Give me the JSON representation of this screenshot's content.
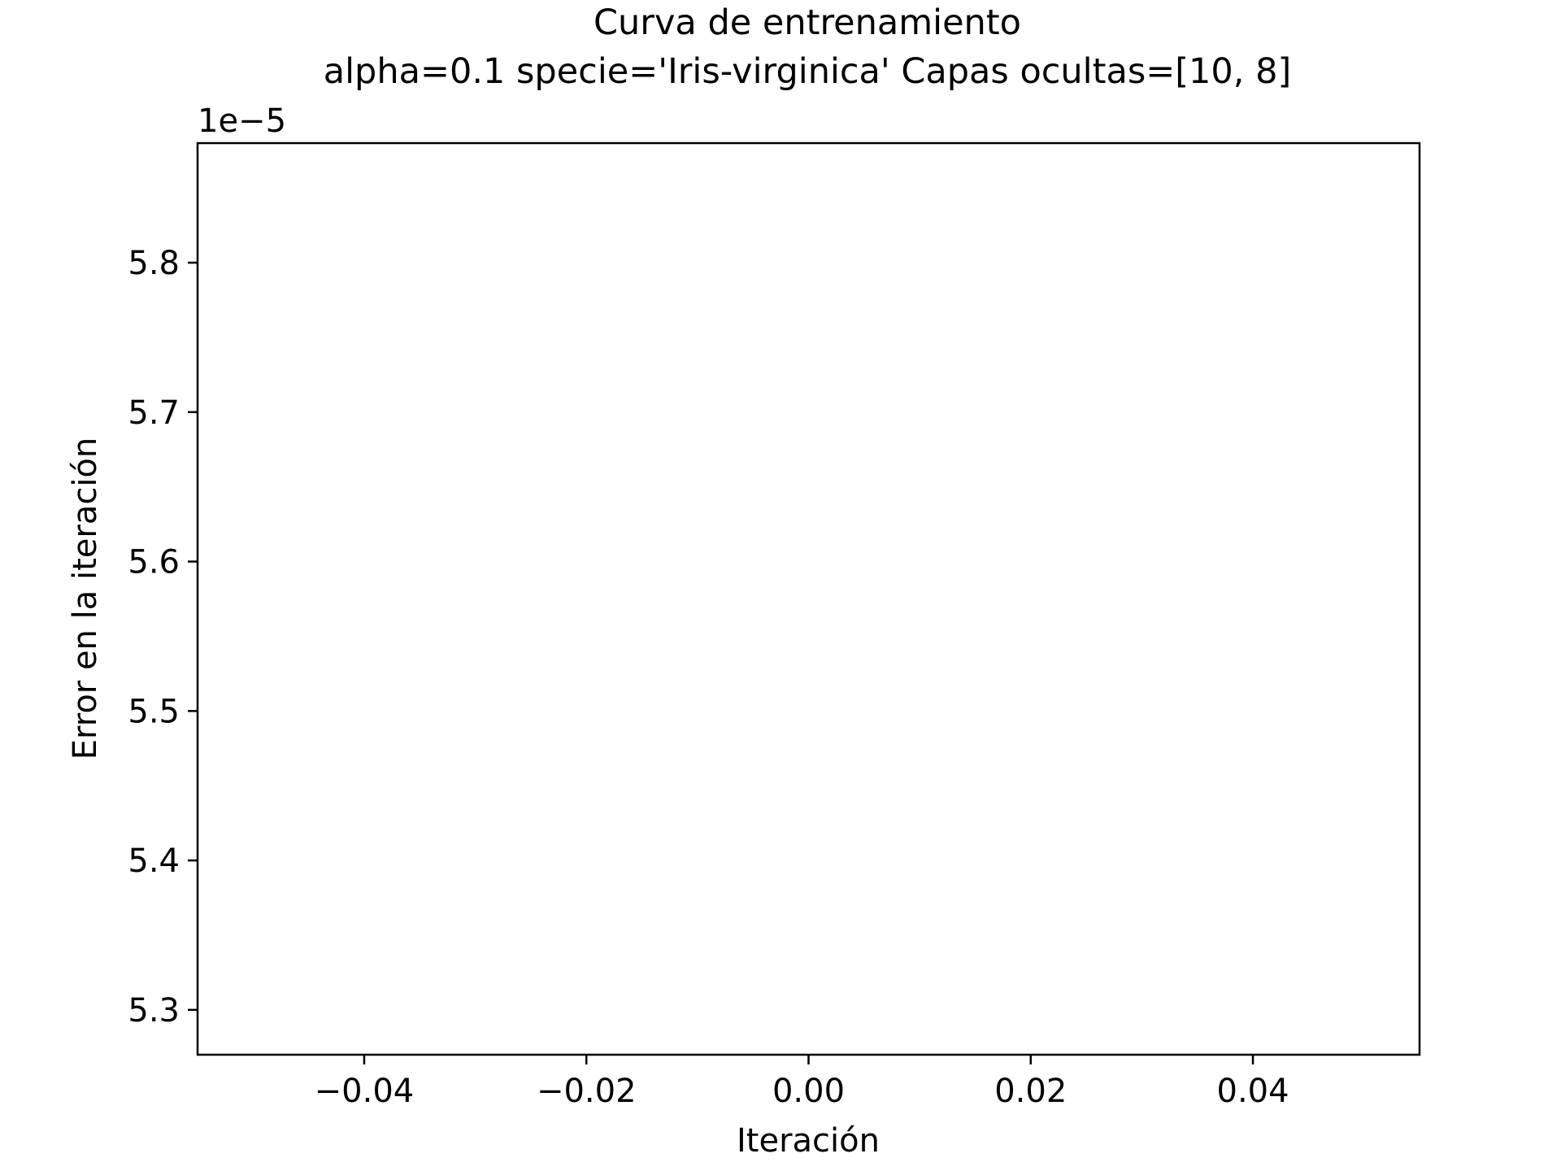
{
  "chart_data": {
    "type": "line",
    "title": "Curva de entrenamiento",
    "subtitle": "alpha=0.1 specie='Iris-virginica' Capas ocultas=[10, 8]",
    "xlabel": "Iteración",
    "ylabel": "Error en la iteración",
    "y_offset_label": "1e−5",
    "xlim": [
      -0.055,
      0.055
    ],
    "ylim": [
      5.27,
      5.88
    ],
    "x_ticks": [
      -0.04,
      -0.02,
      0.0,
      0.02,
      0.04
    ],
    "x_tick_labels": [
      "−0.04",
      "−0.02",
      "0.00",
      "0.02",
      "0.04"
    ],
    "y_ticks": [
      5.3,
      5.4,
      5.5,
      5.6,
      5.7,
      5.8
    ],
    "y_tick_labels": [
      "5.3",
      "5.4",
      "5.5",
      "5.6",
      "5.7",
      "5.8"
    ],
    "grid": false,
    "series": [
      {
        "x": [],
        "y": [],
        "color": "#1f77b4"
      }
    ]
  }
}
